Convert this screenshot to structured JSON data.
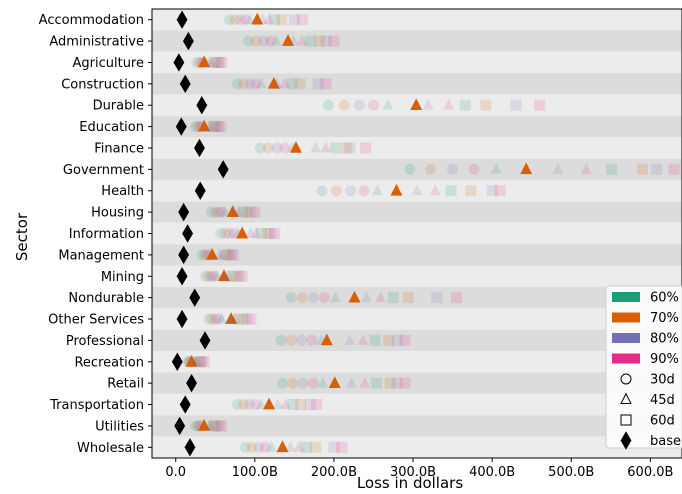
{
  "chart_data": {
    "type": "scatter",
    "title": "",
    "xlabel": "Loss in dollars",
    "ylabel": "Sector",
    "xlim": [
      -30,
      640
    ],
    "x_ticks": [
      0,
      100,
      200,
      300,
      400,
      500,
      600
    ],
    "x_tick_labels": [
      "0.0",
      "100.0B",
      "200.0B",
      "300.0B",
      "400.0B",
      "500.0B",
      "600.0B"
    ],
    "grid": false,
    "legend_position": "right",
    "highlight_level": "70%",
    "categories": [
      "Accommodation",
      "Administrative",
      "Agriculture",
      "Construction",
      "Durable",
      "Education",
      "Finance",
      "Government",
      "Health",
      "Housing",
      "Information",
      "Management",
      "Mining",
      "Nondurable",
      "Other Services",
      "Professional",
      "Recreation",
      "Retail",
      "Transportation",
      "Utilities",
      "Wholesale"
    ],
    "levels": [
      {
        "name": "60%",
        "color": "#1b9e77"
      },
      {
        "name": "70%",
        "color": "#d95f02"
      },
      {
        "name": "80%",
        "color": "#7570b3"
      },
      {
        "name": "90%",
        "color": "#e7298a"
      }
    ],
    "durations": [
      {
        "name": "30d",
        "marker": "circle"
      },
      {
        "name": "45d",
        "marker": "triangle"
      },
      {
        "name": "60d",
        "marker": "square"
      }
    ],
    "baseline": {
      "name": "base",
      "marker": "diamond",
      "color": "#000000",
      "values": [
        8,
        16,
        4,
        12,
        33,
        7,
        30,
        60,
        31,
        10,
        15,
        10,
        8,
        24,
        8,
        37,
        2,
        20,
        12,
        5,
        18
      ]
    },
    "series": [
      {
        "level": "60%",
        "duration": "30d",
        "values": [
          68,
          92,
          27,
          78,
          193,
          25,
          107,
          296,
          185,
          45,
          57,
          33,
          38,
          146,
          42,
          133,
          15,
          135,
          78,
          25,
          88
        ]
      },
      {
        "level": "70%",
        "duration": "30d",
        "values": [
          75,
          102,
          30,
          86,
          213,
          28,
          117,
          322,
          203,
          50,
          63,
          37,
          42,
          160,
          46,
          146,
          17,
          148,
          86,
          28,
          96
        ]
      },
      {
        "level": "80%",
        "duration": "30d",
        "values": [
          82,
          111,
          33,
          94,
          232,
          31,
          128,
          350,
          221,
          54,
          68,
          40,
          45,
          174,
          50,
          159,
          18,
          161,
          93,
          30,
          105
        ]
      },
      {
        "level": "90%",
        "duration": "30d",
        "values": [
          88,
          120,
          35,
          101,
          250,
          33,
          138,
          377,
          238,
          58,
          74,
          43,
          49,
          188,
          54,
          172,
          20,
          174,
          101,
          33,
          113
        ]
      },
      {
        "level": "60%",
        "duration": "45d",
        "values": [
          94,
          127,
          36,
          108,
          268,
          35,
          148,
          405,
          255,
          62,
          79,
          46,
          52,
          202,
          58,
          184,
          21,
          186,
          108,
          35,
          121
        ]
      },
      {
        "level": "70%",
        "duration": "45d",
        "values": [
          103,
          142,
          36,
          124,
          304,
          36,
          152,
          443,
          279,
          72,
          84,
          46,
          61,
          226,
          70,
          191,
          20,
          201,
          118,
          36,
          135
        ]
      },
      {
        "level": "80%",
        "duration": "45d",
        "values": [
          110,
          149,
          43,
          128,
          319,
          42,
          177,
          483,
          305,
          74,
          95,
          55,
          62,
          241,
          70,
          220,
          25,
          222,
          129,
          42,
          145
        ]
      },
      {
        "level": "90%",
        "duration": "45d",
        "values": [
          118,
          160,
          46,
          138,
          345,
          45,
          190,
          519,
          328,
          80,
          102,
          59,
          67,
          259,
          75,
          237,
          27,
          239,
          139,
          45,
          156
        ]
      },
      {
        "level": "60%",
        "duration": "60d",
        "values": [
          125,
          170,
          49,
          147,
          366,
          48,
          202,
          551,
          348,
          85,
          108,
          63,
          71,
          275,
          80,
          252,
          29,
          254,
          148,
          48,
          165
        ]
      },
      {
        "level": "70%",
        "duration": "60d",
        "values": [
          134,
          182,
          53,
          157,
          392,
          51,
          216,
          590,
          373,
          91,
          116,
          67,
          76,
          294,
          85,
          269,
          31,
          271,
          158,
          51,
          177
        ]
      },
      {
        "level": "80%",
        "duration": "60d",
        "values": [
          150,
          190,
          55,
          180,
          430,
          54,
          220,
          608,
          400,
          95,
          120,
          70,
          80,
          330,
          90,
          280,
          33,
          280,
          170,
          55,
          200
        ]
      },
      {
        "level": "90%",
        "duration": "60d",
        "values": [
          160,
          200,
          58,
          190,
          460,
          57,
          240,
          630,
          410,
          100,
          125,
          73,
          84,
          355,
          95,
          290,
          36,
          290,
          178,
          58,
          210
        ]
      }
    ]
  }
}
